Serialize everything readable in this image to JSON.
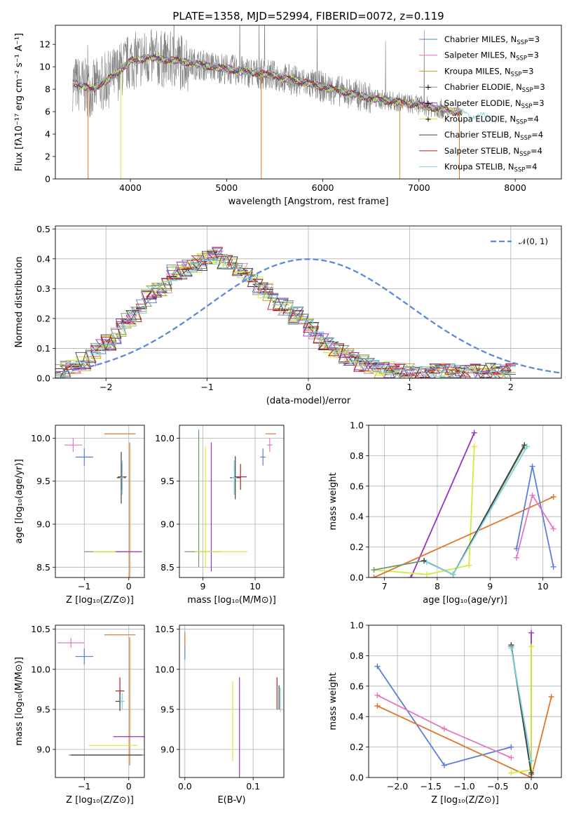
{
  "chart_data": [
    {
      "id": "spectrum",
      "type": "line",
      "title": "PLATE=1358, MJD=52994, FIBERID=0072, z=0.119",
      "xlabel": "wavelength [Angstrom, rest frame]",
      "ylabel": "Flux [fλ10⁻¹⁷ erg cm⁻² s⁻¹ A⁻¹]",
      "xlim": [
        3220,
        8480
      ],
      "ylim": [
        0,
        13.7
      ],
      "xticks": [
        4000,
        5000,
        6000,
        7000,
        8000
      ],
      "yticks": [
        0,
        2,
        4,
        6,
        8,
        10,
        12
      ],
      "grid": false,
      "legend_position": "top-right",
      "data_color": "#808080",
      "continuum": {
        "x": [
          3400,
          3600,
          3800,
          4000,
          4200,
          4500,
          5000,
          5500,
          6000,
          6500,
          7000,
          7500,
          8000
        ],
        "y": [
          8.6,
          8.0,
          9.0,
          10.5,
          10.8,
          10.5,
          9.8,
          9.2,
          8.2,
          7.2,
          6.6,
          5.8,
          5.1
        ]
      },
      "models": [
        {
          "name": "Chabrier MILES, N",
          "sub": "SSP",
          "suffix": "=3",
          "color": "#5b7fd6",
          "marker": ""
        },
        {
          "name": "Salpeter MILES, N",
          "sub": "SSP",
          "suffix": "=3",
          "color": "#e377c2",
          "marker": ""
        },
        {
          "name": "Kroupa MILES, N",
          "sub": "SSP",
          "suffix": "=3",
          "color": "#c49a2a",
          "marker": ""
        },
        {
          "name": "Chabrier ELODIE, N",
          "sub": "SSP",
          "suffix": "=3",
          "color": "#6b9e6b",
          "marker": "+"
        },
        {
          "name": "Salpeter ELODIE, N",
          "sub": "SSP",
          "suffix": "=3",
          "color": "#9b30c0",
          "marker": "+"
        },
        {
          "name": "Kroupa ELODIE, N",
          "sub": "SSP",
          "suffix": "=4",
          "color": "#d4ea3a",
          "marker": "+"
        },
        {
          "name": "Chabrier STELIB, N",
          "sub": "SSP",
          "suffix": "=4",
          "color": "#404040",
          "marker": ""
        },
        {
          "name": "Salpeter STELIB, N",
          "sub": "SSP",
          "suffix": "=4",
          "color": "#b22222",
          "marker": ""
        },
        {
          "name": "Kroupa STELIB, N",
          "sub": "SSP",
          "suffix": "=4",
          "color": "#7fd3dc",
          "marker": ""
        }
      ]
    },
    {
      "id": "residuals",
      "type": "histogram",
      "xlabel": "(data-model)/error",
      "ylabel": "Normed distribution",
      "xlim": [
        -2.5,
        2.5
      ],
      "ylim": [
        0,
        0.51
      ],
      "xticks": [
        -2,
        -1,
        0,
        1,
        2
      ],
      "yticks": [
        0.0,
        0.1,
        0.2,
        0.3,
        0.4,
        0.5
      ],
      "grid": true,
      "legend": "𝒩(0, 1)",
      "legend_position": "top-right",
      "gaussian": {
        "mu": 0,
        "sigma": 1,
        "color": "#5b8ad6"
      },
      "bin_edges_start": -2.5,
      "bin_width": 0.1,
      "bin_heights": [
        0.02,
        0.03,
        0.03,
        0.04,
        0.06,
        0.05,
        0.07,
        0.09,
        0.11,
        0.12,
        0.1,
        0.14,
        0.17,
        0.19,
        0.2,
        0.21,
        0.24,
        0.27,
        0.28,
        0.3,
        0.3,
        0.31,
        0.35,
        0.35,
        0.36,
        0.37,
        0.38,
        0.38,
        0.39,
        0.4,
        0.4,
        0.41,
        0.39,
        0.39,
        0.38,
        0.37,
        0.36,
        0.35,
        0.32,
        0.31,
        0.29,
        0.29,
        0.26,
        0.25,
        0.24,
        0.23,
        0.21,
        0.21,
        0.19,
        0.17,
        0.16,
        0.14,
        0.12,
        0.11,
        0.1,
        0.09,
        0.08,
        0.07,
        0.06,
        0.05,
        0.05,
        0.04,
        0.04,
        0.03,
        0.03,
        0.03,
        0.02,
        0.02,
        0.02,
        0.02,
        0.01,
        0.02,
        0.02,
        0.02,
        0.02,
        0.02,
        0.02,
        0.02,
        0.02,
        0.02,
        0.02,
        0.02,
        0.02,
        0.02,
        0.02,
        0.02,
        0.02,
        0.02,
        0.02,
        0.02
      ]
    },
    {
      "id": "age-vs-Z",
      "type": "scatter",
      "xlabel": "Z [log₁₀(Z/Z⊙)]",
      "ylabel": "age  [log₁₀(age/yr)]",
      "xlim": [
        -1.65,
        0.35
      ],
      "ylim": [
        8.38,
        10.15
      ],
      "xticks": [
        -1,
        0
      ],
      "yticks": [
        8.5,
        9.0,
        9.5,
        10.0
      ],
      "grid": true,
      "points": [
        {
          "color": "#e377c2",
          "x": -1.25,
          "y": 9.92,
          "xerr": 0.2,
          "yerr": 0.08
        },
        {
          "color": "#5b7fd6",
          "x": -1.0,
          "y": 9.78,
          "xerr": 0.2,
          "yerr": 0.1
        },
        {
          "color": "#e0762b",
          "x": -0.2,
          "y": 10.05,
          "xerr": 0.35,
          "yerr": 0.0
        },
        {
          "color": "#e0762b",
          "x": 0.02,
          "y": 9.0,
          "xerr": 0.0,
          "yerr": 0.95
        },
        {
          "color": "#b22222",
          "x": -0.15,
          "y": 9.55,
          "xerr": 0.1,
          "yerr": 0.15
        },
        {
          "color": "#404040",
          "x": -0.17,
          "y": 9.54,
          "xerr": 0.1,
          "yerr": 0.3
        },
        {
          "color": "#7fd3dc",
          "x": -0.15,
          "y": 9.54,
          "xerr": 0.05,
          "yerr": 0.2
        },
        {
          "color": "#6b9e6b",
          "x": -0.5,
          "y": 8.68,
          "xerr": 0.5,
          "yerr": 0.0
        },
        {
          "color": "#d4ea3a",
          "x": -0.3,
          "y": 8.68,
          "xerr": 0.5,
          "yerr": 0.0
        },
        {
          "color": "#9b30c0",
          "x": 0.0,
          "y": 8.68,
          "xerr": 0.3,
          "yerr": 0.0
        }
      ]
    },
    {
      "id": "age-vs-mass",
      "type": "scatter",
      "xlabel": "mass [log₁₀(M/M⊙)]",
      "ylabel": "",
      "xlim": [
        8.55,
        10.55
      ],
      "ylim": [
        8.38,
        10.15
      ],
      "xticks": [
        9,
        10
      ],
      "yticks": [
        8.5,
        9.0,
        9.5,
        10.0
      ],
      "grid": true,
      "points": [
        {
          "color": "#e377c2",
          "x": 10.28,
          "y": 9.92,
          "xerr": 0.05,
          "yerr": 0.08
        },
        {
          "color": "#e0762b",
          "x": 10.3,
          "y": 10.05,
          "xerr": 0.1,
          "yerr": 0.0
        },
        {
          "color": "#5b7fd6",
          "x": 10.15,
          "y": 9.78,
          "xerr": 0.05,
          "yerr": 0.1
        },
        {
          "color": "#b22222",
          "x": 9.72,
          "y": 9.55,
          "xerr": 0.12,
          "yerr": 0.15
        },
        {
          "color": "#404040",
          "x": 9.62,
          "y": 9.54,
          "xerr": 0.1,
          "yerr": 0.25
        },
        {
          "color": "#7fd3dc",
          "x": 9.6,
          "y": 9.54,
          "xerr": 0.05,
          "yerr": 0.2
        },
        {
          "color": "#6b9e6b",
          "x": 8.92,
          "y": 9.3,
          "xerr": 0.0,
          "yerr": 0.8
        },
        {
          "color": "#d4ea3a",
          "x": 9.05,
          "y": 9.2,
          "xerr": 0.0,
          "yerr": 0.7
        },
        {
          "color": "#9b30c0",
          "x": 9.16,
          "y": 9.2,
          "xerr": 0.0,
          "yerr": 0.75
        },
        {
          "color": "#6b9e6b",
          "x": 9.0,
          "y": 8.68,
          "xerr": 0.35,
          "yerr": 0.0
        },
        {
          "color": "#d4ea3a",
          "x": 9.35,
          "y": 8.68,
          "xerr": 0.5,
          "yerr": 0.0
        }
      ]
    },
    {
      "id": "weight-vs-age",
      "type": "line",
      "xlabel": "age  [log₁₀(age/yr)]",
      "ylabel": "mass weight",
      "xlim": [
        6.7,
        10.35
      ],
      "ylim": [
        0,
        1.0
      ],
      "xticks": [
        7,
        8,
        9,
        10
      ],
      "yticks": [
        0.0,
        0.2,
        0.4,
        0.6,
        0.8,
        1.0
      ],
      "grid": true,
      "series": [
        {
          "color": "#9b30c0",
          "x": [
            7.5,
            8.7
          ],
          "y": [
            0.0,
            0.95
          ]
        },
        {
          "color": "#d4ea3a",
          "x": [
            6.8,
            7.8,
            8.6,
            8.7
          ],
          "y": [
            0.05,
            0.02,
            0.08,
            0.86
          ]
        },
        {
          "color": "#e0762b",
          "x": [
            6.8,
            10.2
          ],
          "y": [
            0.0,
            0.53
          ]
        },
        {
          "color": "#6b9e6b",
          "x": [
            6.8,
            7.75,
            8.3,
            9.65
          ],
          "y": [
            0.05,
            0.11,
            0.02,
            0.86
          ]
        },
        {
          "color": "#404040",
          "x": [
            7.75,
            8.3,
            9.65
          ],
          "y": [
            0.11,
            0.02,
            0.87
          ]
        },
        {
          "color": "#7fd3dc",
          "x": [
            7.8,
            8.3,
            9.7
          ],
          "y": [
            0.1,
            0.02,
            0.86
          ]
        },
        {
          "color": "#5b7fd6",
          "x": [
            9.5,
            9.8,
            10.2
          ],
          "y": [
            0.19,
            0.73,
            0.07
          ]
        },
        {
          "color": "#e377c2",
          "x": [
            9.5,
            9.8,
            10.2
          ],
          "y": [
            0.13,
            0.54,
            0.32
          ]
        }
      ]
    },
    {
      "id": "mass-vs-Z",
      "type": "scatter",
      "xlabel": "Z [log₁₀(Z/Z⊙)]",
      "ylabel": "mass [log₁₀(M/M⊙)]",
      "xlim": [
        -1.65,
        0.35
      ],
      "ylim": [
        8.65,
        10.55
      ],
      "xticks": [
        -1,
        0
      ],
      "yticks": [
        9.0,
        9.5,
        10.0,
        10.5
      ],
      "grid": true,
      "points": [
        {
          "color": "#e377c2",
          "x": -1.3,
          "y": 10.33,
          "xerr": 0.3,
          "yerr": 0.06
        },
        {
          "color": "#e0762b",
          "x": -0.2,
          "y": 10.43,
          "xerr": 0.35,
          "yerr": 0.0
        },
        {
          "color": "#5b7fd6",
          "x": -1.0,
          "y": 10.16,
          "xerr": 0.2,
          "yerr": 0.1
        },
        {
          "color": "#e0762b",
          "x": 0.02,
          "y": 9.6,
          "xerr": 0.0,
          "yerr": 0.8
        },
        {
          "color": "#b22222",
          "x": -0.2,
          "y": 9.73,
          "xerr": 0.1,
          "yerr": 0.17
        },
        {
          "color": "#404040",
          "x": -0.2,
          "y": 9.6,
          "xerr": 0.1,
          "yerr": 0.12
        },
        {
          "color": "#7fd3dc",
          "x": -0.15,
          "y": 9.6,
          "xerr": 0.05,
          "yerr": 0.1
        },
        {
          "color": "#9b30c0",
          "x": 0.0,
          "y": 9.16,
          "xerr": 0.35,
          "yerr": 0.0
        },
        {
          "color": "#d4ea3a",
          "x": -0.35,
          "y": 9.05,
          "xerr": 0.55,
          "yerr": 0.0
        },
        {
          "color": "#6b9e6b",
          "x": -0.45,
          "y": 8.93,
          "xerr": 0.9,
          "yerr": 0.0
        },
        {
          "color": "#404040",
          "x": -0.5,
          "y": 8.93,
          "xerr": 0.8,
          "yerr": 0.0
        }
      ]
    },
    {
      "id": "mass-vs-ebv",
      "type": "scatter",
      "xlabel": "E(B-V)",
      "ylabel": "",
      "xlim": [
        -0.008,
        0.145
      ],
      "ylim": [
        8.65,
        10.55
      ],
      "xticks": [
        0.0,
        0.1
      ],
      "yticks": [
        9.0,
        9.5,
        10.0,
        10.5
      ],
      "grid": true,
      "points": [
        {
          "color": "#e0762b",
          "x": 0.0,
          "y": 10.37,
          "xerr": 0.0,
          "yerr": 0.1
        },
        {
          "color": "#5b7fd6",
          "x": 0.0,
          "y": 10.2,
          "xerr": 0.0,
          "yerr": 0.08
        },
        {
          "color": "#d4ea3a",
          "x": 0.07,
          "y": 9.35,
          "xerr": 0.0,
          "yerr": 0.5
        },
        {
          "color": "#9b30c0",
          "x": 0.08,
          "y": 9.15,
          "xerr": 0.0,
          "yerr": 0.75
        },
        {
          "color": "#b22222",
          "x": 0.135,
          "y": 9.7,
          "xerr": 0.0,
          "yerr": 0.2
        },
        {
          "color": "#404040",
          "x": 0.138,
          "y": 9.65,
          "xerr": 0.0,
          "yerr": 0.15
        },
        {
          "color": "#7fd3dc",
          "x": 0.14,
          "y": 9.62,
          "xerr": 0.0,
          "yerr": 0.15
        }
      ]
    },
    {
      "id": "weight-vs-Z",
      "type": "line",
      "xlabel": "Z [log₁₀(Z/Z⊙)]",
      "ylabel": "mass weight",
      "xlim": [
        -2.43,
        0.45
      ],
      "ylim": [
        0,
        1.0
      ],
      "xticks": [
        -2.0,
        -1.5,
        -1.0,
        -0.5,
        0.0
      ],
      "yticks": [
        0.0,
        0.2,
        0.4,
        0.6,
        0.8,
        1.0
      ],
      "grid": true,
      "series": [
        {
          "color": "#5b7fd6",
          "x": [
            -2.3,
            -1.3,
            -0.3
          ],
          "y": [
            0.73,
            0.08,
            0.2
          ]
        },
        {
          "color": "#e377c2",
          "x": [
            -2.3,
            -1.3,
            -0.3
          ],
          "y": [
            0.54,
            0.32,
            0.13
          ]
        },
        {
          "color": "#e0762b",
          "x": [
            -2.3,
            0.0,
            0.3
          ],
          "y": [
            0.47,
            0.0,
            0.53
          ]
        },
        {
          "color": "#9b30c0",
          "x": [
            0.0,
            0.0
          ],
          "y": [
            0.0,
            0.95
          ]
        },
        {
          "color": "#d4ea3a",
          "x": [
            -0.3,
            0.0,
            0.0
          ],
          "y": [
            0.03,
            0.05,
            0.86
          ]
        },
        {
          "color": "#6b9e6b",
          "x": [
            -0.3,
            0.0
          ],
          "y": [
            0.86,
            0.02
          ]
        },
        {
          "color": "#404040",
          "x": [
            -0.3,
            0.0
          ],
          "y": [
            0.87,
            0.03
          ]
        },
        {
          "color": "#7fd3dc",
          "x": [
            -0.3,
            0.0
          ],
          "y": [
            0.85,
            0.11
          ]
        }
      ]
    }
  ]
}
